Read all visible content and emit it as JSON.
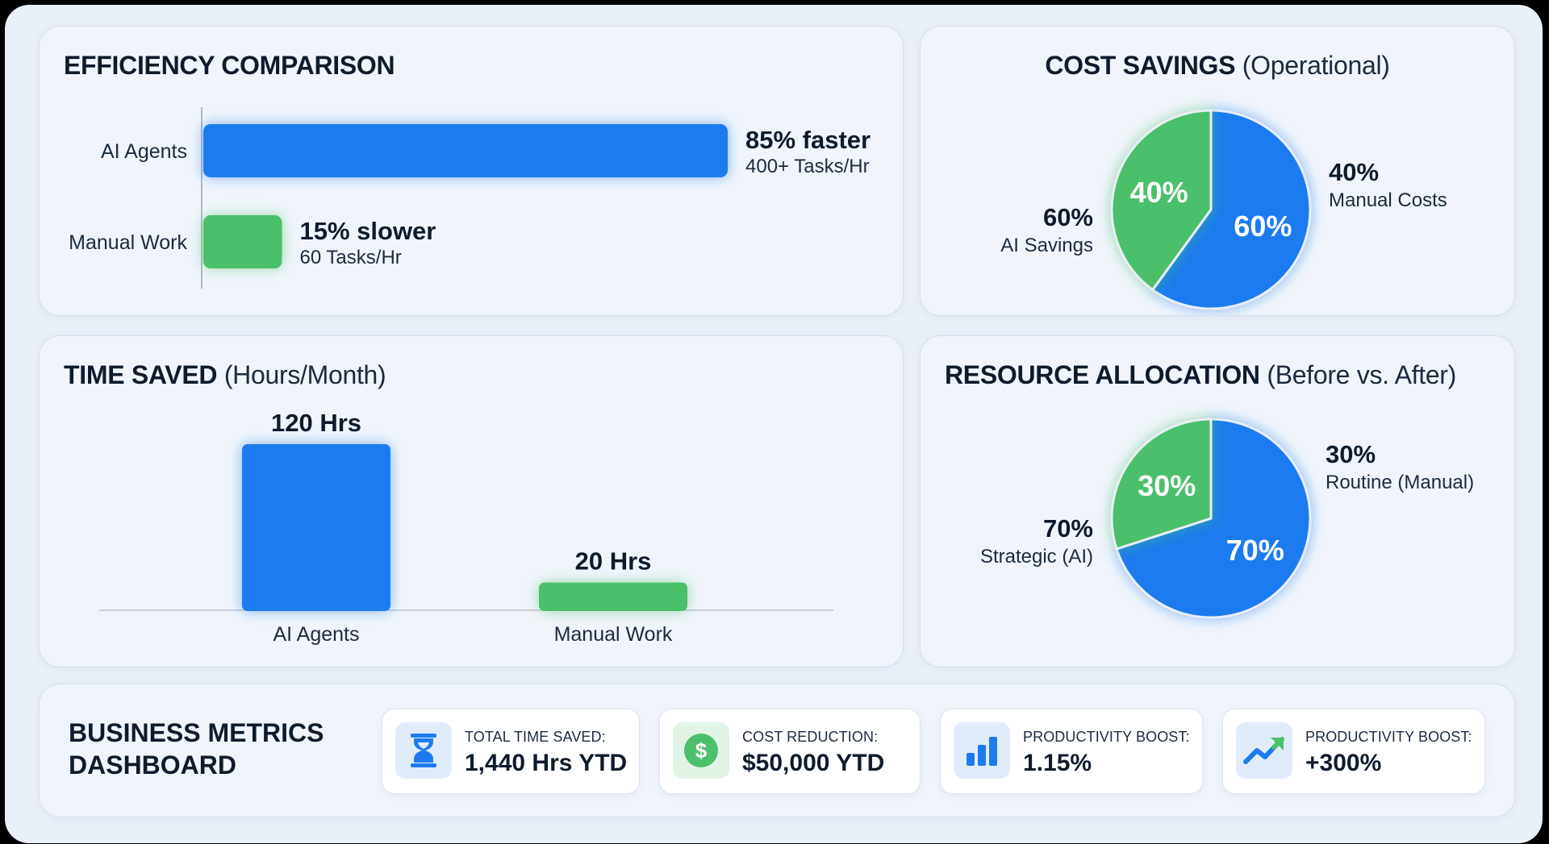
{
  "efficiency": {
    "title": "EFFICIENCY COMPARISON",
    "subtitle": ""
  },
  "cost": {
    "title": "COST SAVINGS",
    "subtitle": "(Operational)"
  },
  "time": {
    "title": "TIME SAVED",
    "subtitle": "(Hours/Month)"
  },
  "resource": {
    "title": "RESOURCE ALLOCATION",
    "subtitle": "(Before vs. After)"
  },
  "colors": {
    "blue": "#1e7bef",
    "green": "#4cc06b"
  },
  "chart_data": [
    {
      "type": "bar",
      "orientation": "horizontal",
      "title": "EFFICIENCY COMPARISON",
      "categories": [
        "AI Agents",
        "Manual Work"
      ],
      "values": [
        400,
        60
      ],
      "value_labels": [
        "85% faster",
        "15% slower"
      ],
      "sub_labels": [
        "400+ Tasks/Hr",
        "60 Tasks/Hr"
      ],
      "colors": [
        "#1e7bef",
        "#4cc06b"
      ],
      "xlim": [
        0,
        400
      ]
    },
    {
      "type": "pie",
      "title": "COST SAVINGS (Operational)",
      "slices": [
        {
          "label": "AI Savings",
          "value": 60,
          "pct_label": "60%",
          "color": "#1e7bef"
        },
        {
          "label": "Manual Costs",
          "value": 40,
          "pct_label": "40%",
          "color": "#4cc06b"
        }
      ]
    },
    {
      "type": "bar",
      "orientation": "vertical",
      "title": "TIME SAVED (Hours/Month)",
      "categories": [
        "AI Agents",
        "Manual Work"
      ],
      "values": [
        120,
        20
      ],
      "value_labels": [
        "120 Hrs",
        "20 Hrs"
      ],
      "colors": [
        "#1e7bef",
        "#4cc06b"
      ],
      "ylim": [
        0,
        120
      ]
    },
    {
      "type": "pie",
      "title": "RESOURCE ALLOCATION (Before vs. After)",
      "slices": [
        {
          "label": "Strategic (AI)",
          "value": 70,
          "pct_label": "70%",
          "color": "#1e7bef"
        },
        {
          "label": "Routine (Manual)",
          "value": 30,
          "pct_label": "30%",
          "color": "#4cc06b"
        }
      ]
    }
  ],
  "metrics": {
    "title_line1": "BUSINESS METRICS",
    "title_line2": "DASHBOARD",
    "items": [
      {
        "label": "TOTAL TIME SAVED:",
        "value": "1,440 Hrs YTD",
        "icon": "hourglass-icon"
      },
      {
        "label": "COST REDUCTION:",
        "value": "$50,000 YTD",
        "icon": "dollar-icon",
        "icon_glyph": "$"
      },
      {
        "label": "PRODUCTIVITY BOOST:",
        "value": "1.15%",
        "icon": "bar-chart-icon"
      },
      {
        "label": "PRODUCTIVITY BOOST:",
        "value": "+300%",
        "icon": "trend-up-icon"
      }
    ]
  }
}
